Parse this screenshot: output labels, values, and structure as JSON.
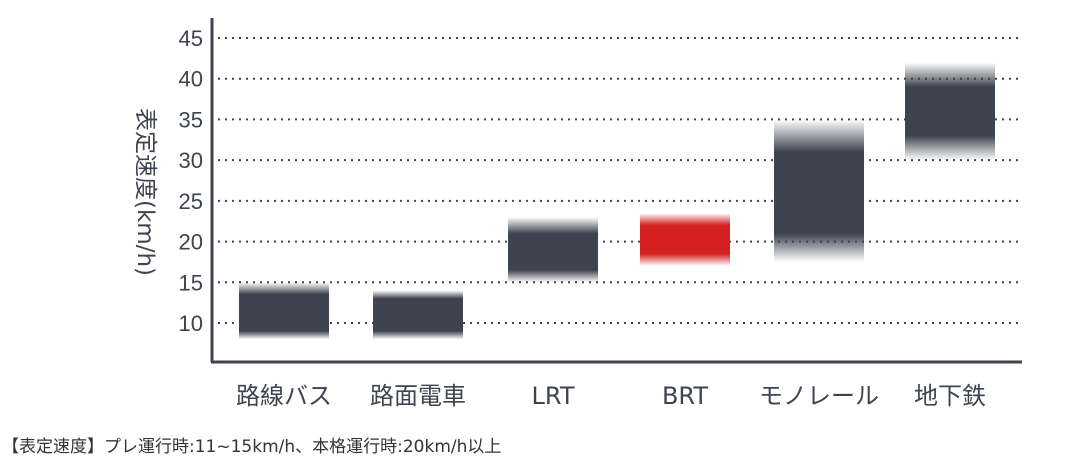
{
  "chart_data": {
    "type": "bar",
    "ylabel": "表定速度(km/h)",
    "ylim": [
      5,
      47
    ],
    "yticks": [
      10,
      15,
      20,
      25,
      30,
      35,
      40,
      45
    ],
    "grid": true,
    "categories": [
      "路線バス",
      "路面電車",
      "LRT",
      "BRT",
      "モノレール",
      "地下鉄"
    ],
    "ranges": [
      {
        "category": "路線バス",
        "low": 8,
        "high": 15,
        "core_low": 9,
        "core_high": 13.5,
        "color": "#3d4450"
      },
      {
        "category": "路面電車",
        "low": 8,
        "high": 14,
        "core_low": 9,
        "core_high": 13,
        "color": "#3d4450"
      },
      {
        "category": "LRT",
        "low": 15,
        "high": 23,
        "core_low": 16.5,
        "core_high": 21,
        "color": "#3d4450"
      },
      {
        "category": "BRT",
        "low": 17,
        "high": 23.5,
        "core_low": 18.5,
        "core_high": 22,
        "color": "#d42020"
      },
      {
        "category": "モノレール",
        "low": 17.5,
        "high": 35,
        "core_low": 21,
        "core_high": 31,
        "color": "#3d4450"
      },
      {
        "category": "地下鉄",
        "low": 30,
        "high": 42,
        "core_low": 33,
        "core_high": 39,
        "color": "#3d4450"
      }
    ],
    "highlight_category": "BRT",
    "highlight_color": "#d42020",
    "text_color": "#3d4450"
  },
  "footnote": "【表定速度】プレ運行時:11~15km/h、本格運行時:20km/h以上"
}
